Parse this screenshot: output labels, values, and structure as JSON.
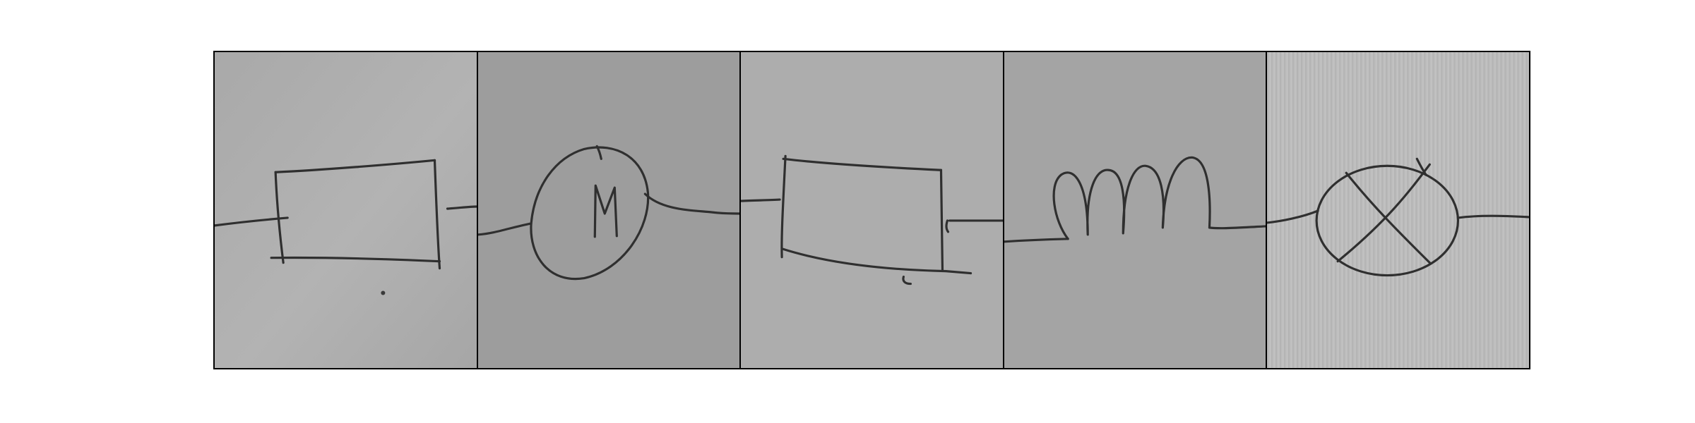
{
  "figure": {
    "panel_count": 5,
    "colors": {
      "frame": "#000000",
      "ink": "#2f2f2f",
      "paper_panels": [
        "#b0b0b0",
        "#9e9e9e",
        "#afafaf",
        "#a4a4a4",
        "#bdbdbd"
      ]
    },
    "panels": [
      {
        "symbol": "resistor-sketch",
        "label": ""
      },
      {
        "symbol": "motor-sketch",
        "label": "M"
      },
      {
        "symbol": "resistor-sketch",
        "label": ""
      },
      {
        "symbol": "inductor-coil-sketch",
        "label": ""
      },
      {
        "symbol": "lamp-sketch",
        "label": ""
      }
    ]
  }
}
